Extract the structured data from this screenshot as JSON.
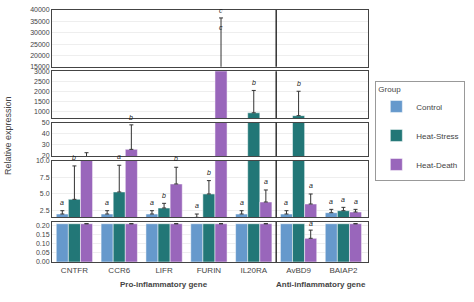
{
  "chart_data": {
    "type": "bar",
    "categories": [
      "CNTFR",
      "CCR6",
      "LIFR",
      "FURIN",
      "IL20RA",
      "AvBD9",
      "BAIAP2"
    ],
    "ylabel": "Relative expression",
    "x_groups": [
      {
        "label": "Pro-inflammatory gene",
        "categories": [
          "CNTFR",
          "CCR6",
          "LIFR",
          "FURIN",
          "IL20RA"
        ]
      },
      {
        "label": "Anti-inflammatory gene",
        "categories": [
          "AvBD9",
          "BAIAP2"
        ]
      }
    ],
    "legend_title": "Group",
    "legend": "right",
    "grid": true,
    "series": [
      {
        "name": "Control",
        "color": "#6699CC",
        "values": [
          2.0,
          2.0,
          2.0,
          1.5,
          2.0,
          2.0,
          2.2
        ],
        "errors": [
          0.5,
          0.5,
          0.5,
          0.5,
          0.5,
          0.5,
          0.5
        ]
      },
      {
        "name": "Heat-Stress",
        "color": "#227777",
        "values": [
          4.2,
          5.3,
          2.9,
          5.0,
          960.0,
          820.0,
          2.5
        ],
        "errors": [
          5.0,
          4.0,
          0.7,
          2.0,
          1100.0,
          1200.0,
          0.5
        ]
      },
      {
        "name": "Heat-Death",
        "color": "#9966BB",
        "values": [
          16.0,
          26.0,
          6.5,
          14500.0,
          3.8,
          3.5,
          2.3
        ],
        "errors": [
          7.0,
          22.0,
          2.5,
          22000.0,
          1.8,
          1.5,
          0.4
        ]
      }
    ],
    "panels": [
      {
        "ylim": [
          15000,
          40000
        ],
        "yticks": [
          15000,
          20000,
          25000,
          30000,
          35000,
          40000
        ]
      },
      {
        "ylim": [
          700,
          3000
        ],
        "yticks": [
          1000,
          1500,
          2000,
          2500,
          3000
        ]
      },
      {
        "ylim": [
          20,
          50
        ],
        "yticks": [
          20,
          30,
          40,
          50
        ]
      },
      {
        "ylim": [
          1.5,
          10.0
        ],
        "yticks": [
          2.5,
          {
            "value": 5.0,
            "label": "5.0"
          },
          7.5,
          {
            "value": 10.0,
            "label": "10.0"
          }
        ]
      },
      {
        "ylim": [
          0.0,
          0.22
        ],
        "yticks": [
          {
            "value": 0.0,
            "label": "0.00"
          },
          0.05,
          {
            "value": 0.1,
            "label": "0.10"
          },
          0.15,
          {
            "value": 0.2,
            "label": "0.20"
          }
        ],
        "series": [
          {
            "name": "Control",
            "values": [
              0.21,
              0.21,
              0.21,
              0.21,
              0.21,
              0.21,
              0.21
            ]
          },
          {
            "name": "Heat-Stress",
            "values": [
              0.21,
              0.21,
              0.21,
              0.21,
              0.21,
              0.21,
              0.21
            ]
          },
          {
            "name": "Heat-Death",
            "values": [
              0.21,
              0.21,
              0.21,
              0.21,
              0.21,
              0.13,
              0.21
            ],
            "errors": [
              null,
              null,
              null,
              null,
              null,
              0.045,
              null
            ]
          }
        ]
      }
    ],
    "annotations": [
      {
        "text": "c",
        "panel": 0,
        "category": "FURIN",
        "series": "Heat-Death",
        "y": 37500
      },
      {
        "text": "c",
        "panel": 0,
        "category": "FURIN",
        "series": "Heat-Death",
        "y": 29750
      },
      {
        "text": "b",
        "panel": 1,
        "category": "IL20RA",
        "series": "Heat-Stress",
        "y": 2175
      },
      {
        "text": "b",
        "panel": 1,
        "category": "AvBD9",
        "series": "Heat-Stress",
        "y": 2135
      },
      {
        "text": "b",
        "panel": 2,
        "category": "CCR6",
        "series": "Heat-Death",
        "y": 49.5
      },
      {
        "text": "a",
        "panel": 3,
        "category": "CNTFR",
        "series": "Control",
        "y": 2.925
      },
      {
        "text": "b",
        "panel": 3,
        "category": "CNTFR",
        "series": "Heat-Stress",
        "y": 9.625
      },
      {
        "text": "a",
        "panel": 3,
        "category": "CCR6",
        "series": "Control",
        "y": 2.925
      },
      {
        "text": "a",
        "panel": 3,
        "category": "CCR6",
        "series": "Heat-Stress",
        "y": 9.725
      },
      {
        "text": "a",
        "panel": 3,
        "category": "LIFR",
        "series": "Control",
        "y": 2.925
      },
      {
        "text": "b",
        "panel": 3,
        "category": "LIFR",
        "series": "Heat-Stress",
        "y": 4.025
      },
      {
        "text": "b",
        "panel": 3,
        "category": "LIFR",
        "series": "Heat-Death",
        "y": 9.425
      },
      {
        "text": "a",
        "panel": 3,
        "category": "FURIN",
        "series": "Control",
        "y": 2.425
      },
      {
        "text": "b",
        "panel": 3,
        "category": "FURIN",
        "series": "Heat-Stress",
        "y": 7.425
      },
      {
        "text": "a",
        "panel": 3,
        "category": "IL20RA",
        "series": "Control",
        "y": 2.925
      },
      {
        "text": "a",
        "panel": 3,
        "category": "IL20RA",
        "series": "Heat-Death",
        "y": 6.025
      },
      {
        "text": "a",
        "panel": 3,
        "category": "AvBD9",
        "series": "Control",
        "y": 2.925
      },
      {
        "text": "a",
        "panel": 3,
        "category": "AvBD9",
        "series": "Heat-Death",
        "y": 5.425
      },
      {
        "text": "a",
        "panel": 3,
        "category": "BAIAP2",
        "series": "Control",
        "y": 3.125
      },
      {
        "text": "a",
        "panel": 3,
        "category": "BAIAP2",
        "series": "Heat-Stress",
        "y": 3.425
      },
      {
        "text": "a",
        "panel": 3,
        "category": "BAIAP2",
        "series": "Heat-Death",
        "y": 3.125
      },
      {
        "text": "a",
        "panel": 4,
        "category": "AvBD9",
        "series": "Heat-Death",
        "y": 0.181
      }
    ]
  }
}
